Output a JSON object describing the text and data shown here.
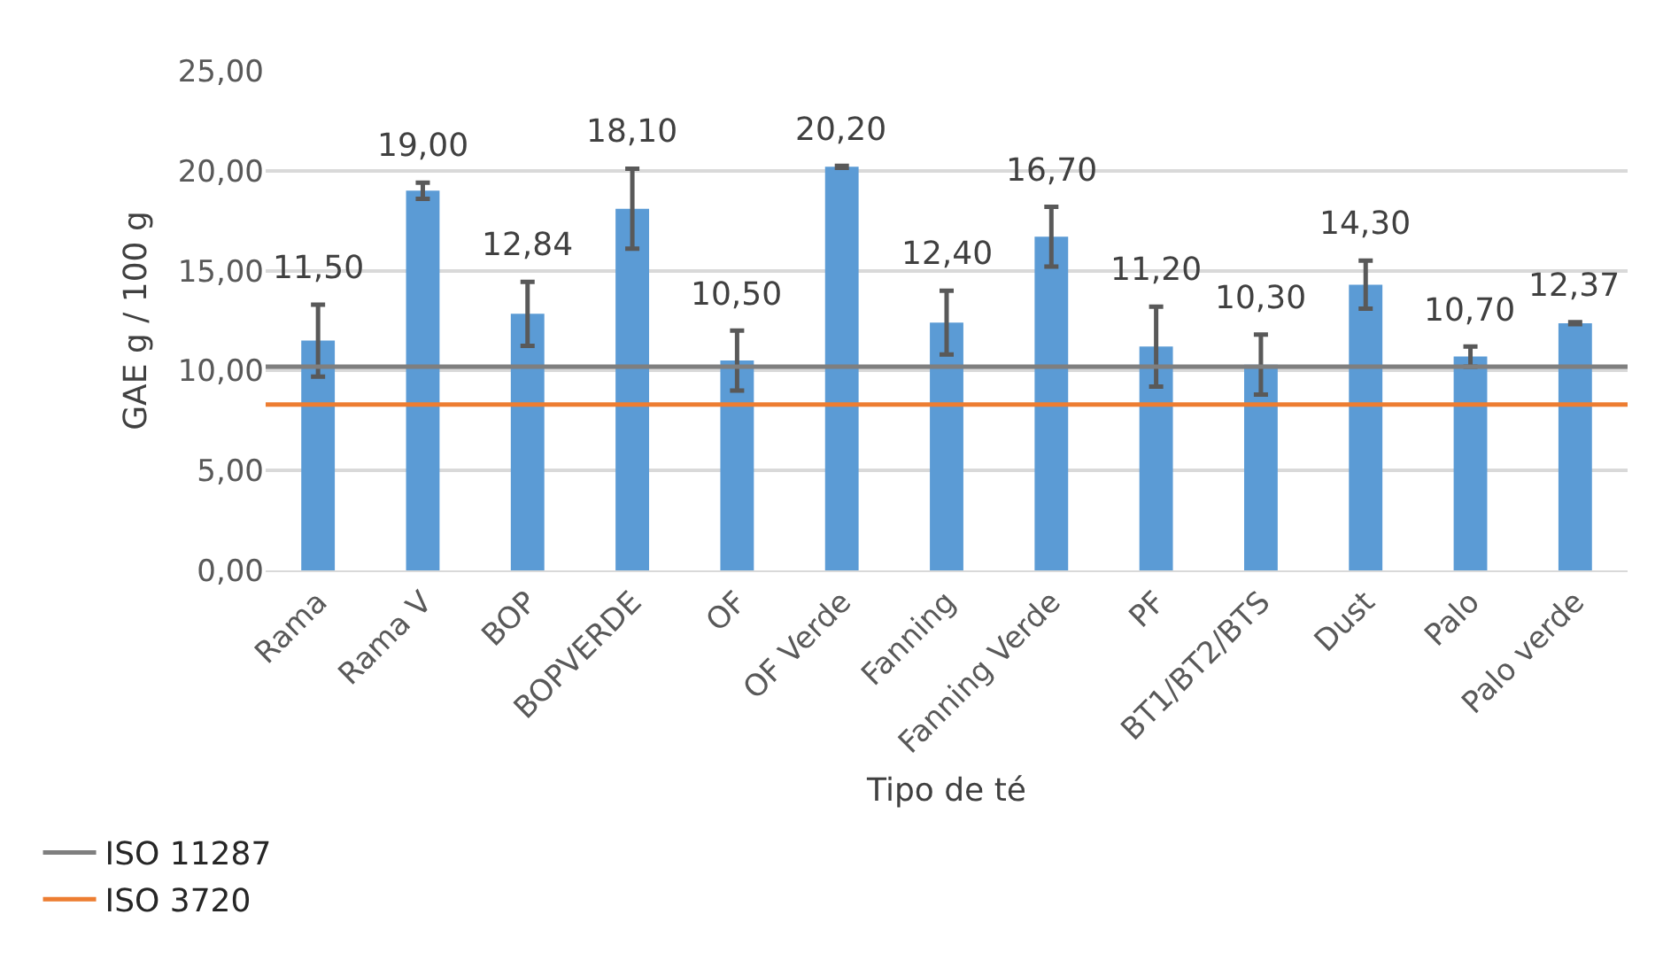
{
  "chart_data": {
    "type": "bar",
    "xlabel": "Tipo de té",
    "ylabel": "GAE g / 100 g",
    "categories": [
      "Rama",
      "Rama V",
      "BOP",
      "BOPVERDE",
      "OF",
      "OF Verde",
      "Fanning",
      "Fanning Verde",
      "PF",
      "BT1/BT2/BTS",
      "Dust",
      "Palo",
      "Palo verde"
    ],
    "values": [
      11.5,
      19.0,
      12.84,
      18.1,
      10.5,
      20.2,
      12.4,
      16.7,
      11.2,
      10.3,
      14.3,
      10.7,
      12.37
    ],
    "value_labels": [
      "11,50",
      "19,00",
      "12,84",
      "18,10",
      "10,50",
      "20,20",
      "12,40",
      "16,70",
      "11,20",
      "10,30",
      "14,30",
      "10,70",
      "12,37"
    ],
    "errors": [
      1.8,
      0.4,
      1.6,
      2.0,
      1.5,
      0.05,
      1.6,
      1.5,
      2.0,
      1.5,
      1.2,
      0.5,
      0.05
    ],
    "color": "#5b9bd5",
    "ylim": [
      0,
      25
    ],
    "yticks": [
      {
        "value": 0,
        "label": "0,00"
      },
      {
        "value": 5,
        "label": "5,00"
      },
      {
        "value": 10,
        "label": "10,00"
      },
      {
        "value": 15,
        "label": "15,00"
      },
      {
        "value": 20,
        "label": "20,00"
      },
      {
        "value": 25,
        "label": "25,00"
      }
    ],
    "grid": "y",
    "ref_lines": [
      {
        "axis": "y",
        "value": 10.2,
        "label": "ISO 11287",
        "color": "#7f7f7f"
      },
      {
        "axis": "y",
        "value": 8.3,
        "label": "ISO 3720",
        "color": "#ed7d31"
      }
    ],
    "legend": "bottom left"
  }
}
